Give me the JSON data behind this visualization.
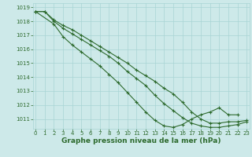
{
  "series": [
    {
      "x": [
        0,
        1,
        2,
        3,
        4,
        5,
        6,
        7,
        8,
        9,
        10,
        11,
        12,
        13,
        14,
        15,
        16,
        17,
        18,
        19,
        20,
        21,
        22,
        23
      ],
      "y": [
        1018.7,
        1018.7,
        1018.1,
        1017.7,
        1017.4,
        1017.0,
        1016.6,
        1016.2,
        1015.8,
        1015.4,
        1015.0,
        1014.5,
        1014.1,
        1013.7,
        1013.2,
        1012.8,
        1012.2,
        1011.5,
        1011.0,
        1010.7,
        1010.7,
        1010.8,
        1010.8,
        1010.9
      ]
    },
    {
      "x": [
        0,
        1,
        2,
        3,
        4,
        5,
        6,
        7,
        8,
        9,
        10,
        11,
        12,
        13,
        14,
        15,
        16,
        17,
        18,
        19,
        20,
        21,
        22,
        23
      ],
      "y": [
        1018.7,
        1018.7,
        1018.0,
        1017.5,
        1017.1,
        1016.7,
        1016.3,
        1015.9,
        1015.5,
        1015.0,
        1014.4,
        1013.9,
        1013.4,
        1012.7,
        1012.1,
        1011.6,
        1011.1,
        1010.7,
        1010.5,
        1010.4,
        1010.4,
        1010.5,
        1010.6,
        1010.8
      ]
    },
    {
      "x": [
        0,
        2,
        3,
        4,
        5,
        6,
        7,
        8,
        9,
        10,
        11,
        12,
        13,
        14,
        15,
        16,
        17,
        18,
        19,
        20,
        21,
        22
      ],
      "y": [
        1018.7,
        1017.8,
        1016.9,
        1016.3,
        1015.8,
        1015.3,
        1014.8,
        1014.2,
        1013.6,
        1012.9,
        1012.2,
        1011.5,
        1010.9,
        1010.5,
        1010.4,
        1010.6,
        1011.0,
        1011.3,
        1011.5,
        1011.8,
        1011.3,
        1011.3
      ]
    }
  ],
  "line_color": "#2d6a2d",
  "marker": "+",
  "markersize": 3,
  "linewidth": 0.8,
  "markeredgewidth": 0.8,
  "ylim": [
    1010.3,
    1019.3
  ],
  "xlim": [
    -0.3,
    23.3
  ],
  "yticks": [
    1011,
    1012,
    1013,
    1014,
    1015,
    1016,
    1017,
    1018,
    1019
  ],
  "xticks": [
    0,
    1,
    2,
    3,
    4,
    5,
    6,
    7,
    8,
    9,
    10,
    11,
    12,
    13,
    14,
    15,
    16,
    17,
    18,
    19,
    20,
    21,
    22,
    23
  ],
  "xlabel": "Graphe pression niveau de la mer (hPa)",
  "bg_color": "#cde9e9",
  "grid_color": "#a8d4d4",
  "tick_color": "#2d6a2d",
  "label_color": "#2d6a2d",
  "tick_fontsize": 5.0,
  "xlabel_fontsize": 6.5
}
